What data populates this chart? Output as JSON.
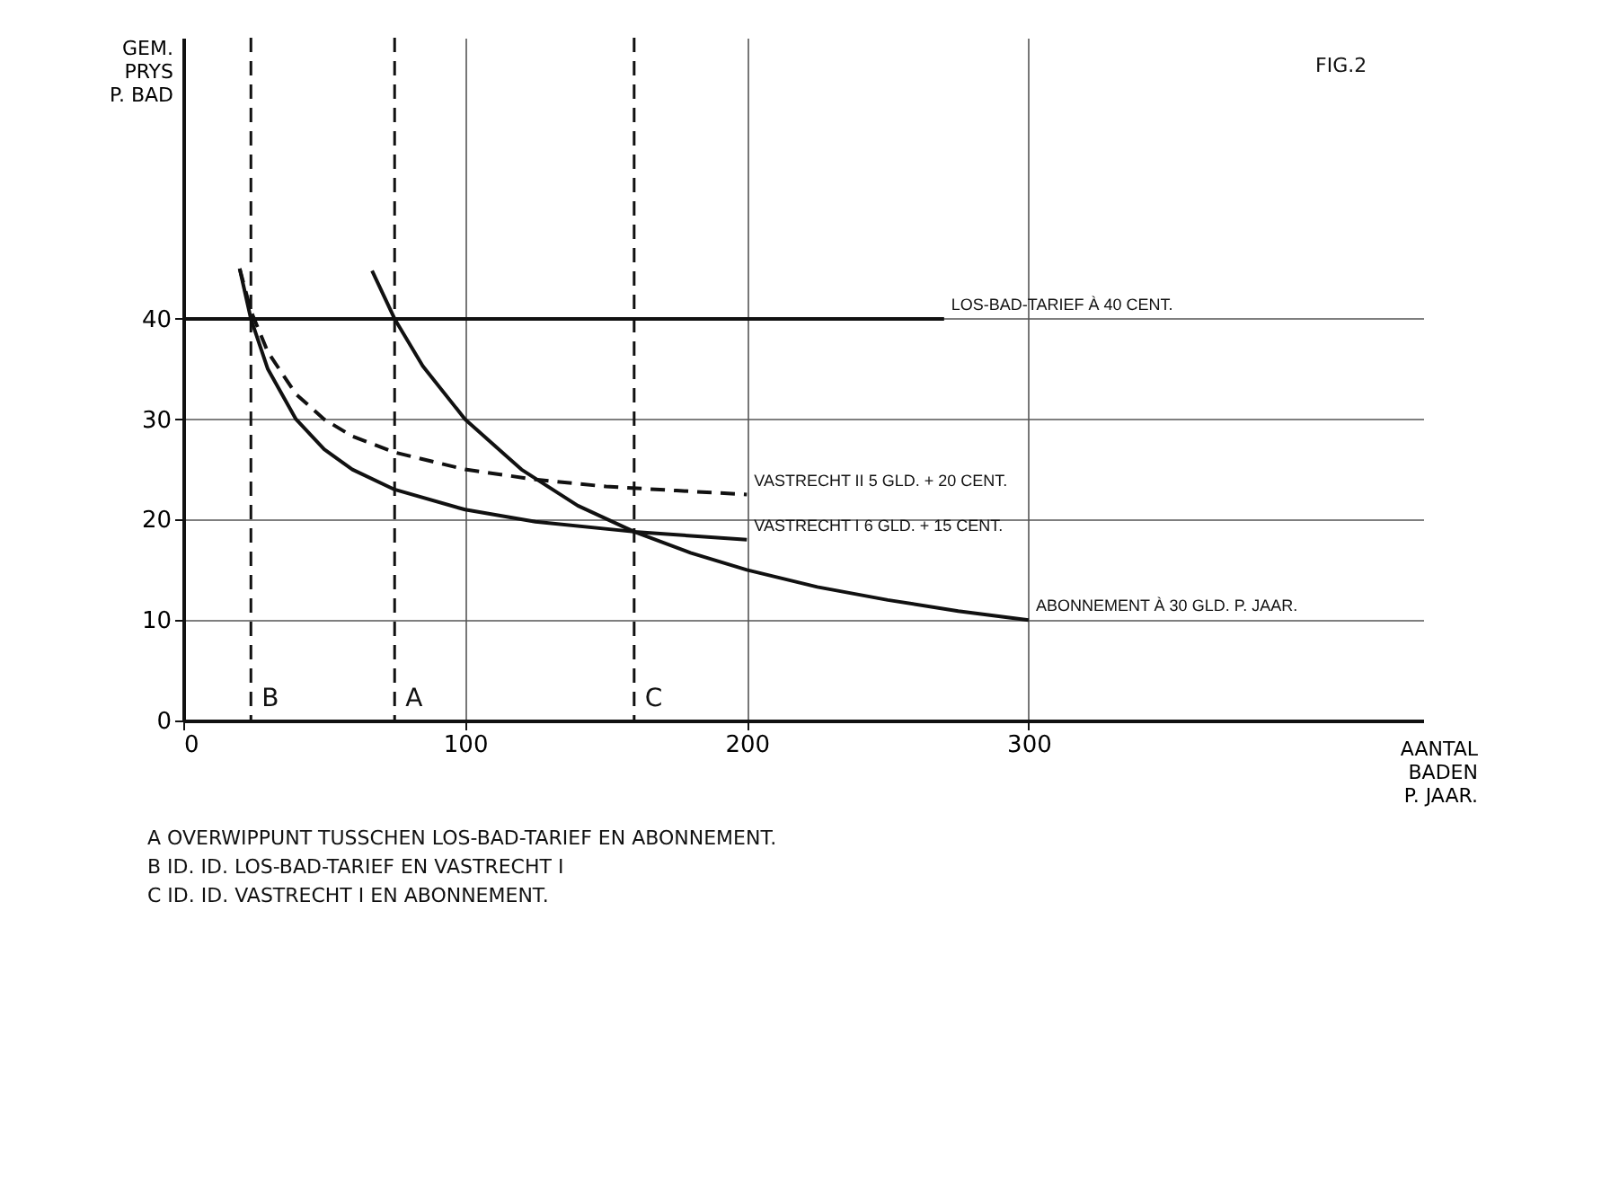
{
  "chart_data": {
    "type": "line",
    "ylabel": "GEM.\nPRYS\nP. BAD",
    "xlabel": "AANTAL\nBADEN\nP. JAAR.",
    "xlim": [
      0,
      440
    ],
    "ylim": [
      0,
      68
    ],
    "xticks": [
      0,
      100,
      200,
      300
    ],
    "yticks": [
      0,
      10,
      20,
      30,
      40
    ],
    "grid": true,
    "marker": "none",
    "series": [
      {
        "name": "LOS-BAD-TARIEF À 40 CENT.",
        "color": "#111111",
        "line_style": "solid",
        "x": [
          0,
          270
        ],
        "values": [
          40,
          40
        ]
      },
      {
        "name": "VASTRECHT II 5 GLD. + 20 CENT.",
        "color": "#111111",
        "line_style": "dashed",
        "x": [
          20,
          24,
          30,
          40,
          50,
          60,
          75,
          100,
          125,
          150,
          175,
          200
        ],
        "values": [
          45,
          40.8,
          36.7,
          32.5,
          30,
          28.3,
          26.7,
          25,
          24,
          23.3,
          22.9,
          22.5
        ]
      },
      {
        "name": "VASTRECHT I 6 GLD. + 15 CENT.",
        "color": "#111111",
        "line_style": "solid",
        "x": [
          20,
          24,
          30,
          40,
          50,
          60,
          75,
          100,
          125,
          160,
          200
        ],
        "values": [
          45,
          40,
          35,
          30,
          27,
          25,
          23,
          21,
          19.8,
          18.8,
          18
        ]
      },
      {
        "name": "ABONNEMENT À 30 GLD. P. JAAR.",
        "color": "#111111",
        "line_style": "solid",
        "x": [
          67,
          75,
          85,
          100,
          120,
          140,
          160,
          180,
          200,
          225,
          250,
          275,
          300
        ],
        "values": [
          44.8,
          40,
          35.3,
          30,
          25,
          21.4,
          18.8,
          16.7,
          15,
          13.3,
          12,
          10.9,
          10
        ]
      }
    ],
    "ref_lines": [
      {
        "axis": "x",
        "value": 24,
        "label": "B",
        "line_style": "dashed",
        "color": "#111111"
      },
      {
        "axis": "x",
        "value": 75,
        "label": "A",
        "line_style": "dashed",
        "color": "#111111"
      },
      {
        "axis": "x",
        "value": 160,
        "label": "C",
        "line_style": "dashed",
        "color": "#111111"
      }
    ],
    "annotations": [
      "FIG.2",
      "A   OVERWIPPUNT TUSSCHEN LOS-BAD-TARIEF EN ABONNEMENT.",
      "B   ID.   ID.   LOS-BAD-TARIEF EN VASTRECHT I",
      "C   ID.   ID.   VASTRECHT I EN ABONNEMENT."
    ]
  }
}
